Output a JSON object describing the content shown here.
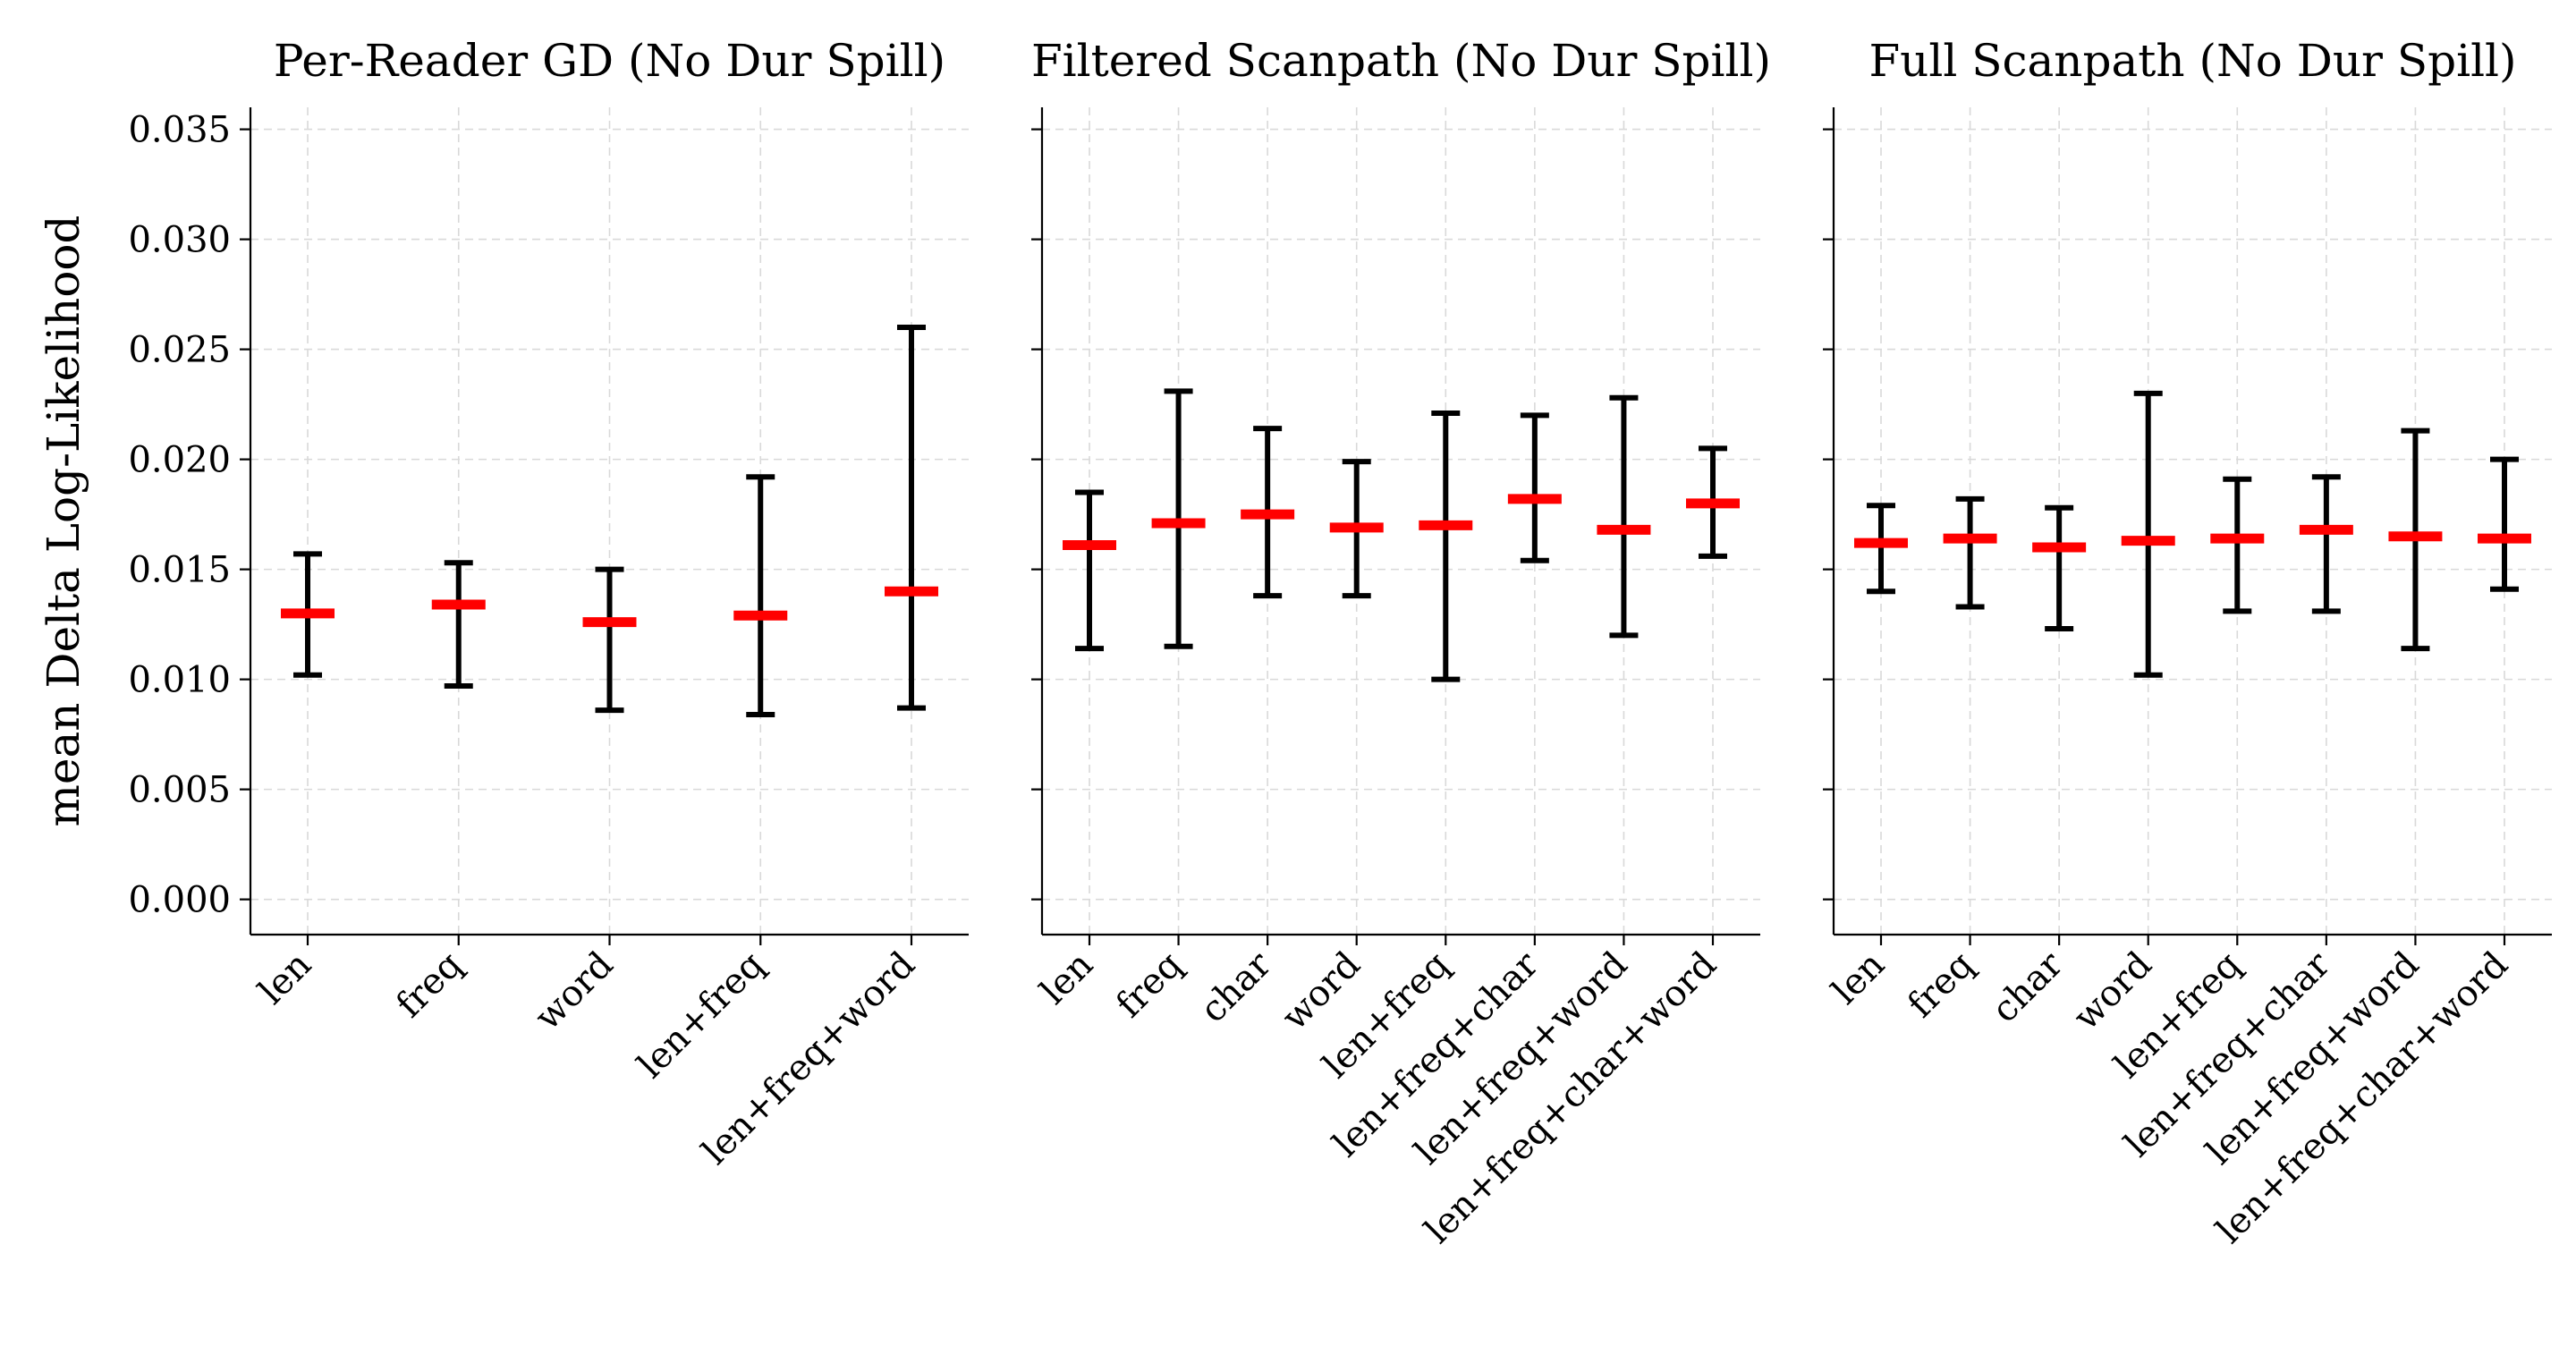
{
  "chart_data": {
    "type": "errorbar",
    "ylabel": "mean Delta Log-Likelihood",
    "ylim": [
      -0.0016,
      0.036
    ],
    "yticks": [
      "0.000",
      "0.005",
      "0.010",
      "0.015",
      "0.020",
      "0.025",
      "0.030",
      "0.035"
    ],
    "sharey": true,
    "grid": true,
    "colors": {
      "mean": "#ff0000",
      "errorbar": "#000000",
      "grid": "#d9d9d9"
    },
    "panels": [
      {
        "title": "Per-Reader GD (No Dur Spill)",
        "categories": [
          "len",
          "freq",
          "word",
          "len+freq",
          "len+freq+word"
        ],
        "mean": [
          0.013,
          0.0134,
          0.0126,
          0.0129,
          0.014
        ],
        "lower": [
          0.0102,
          0.0097,
          0.0086,
          0.0084,
          0.0087
        ],
        "upper": [
          0.0157,
          0.0153,
          0.015,
          0.0192,
          0.026
        ]
      },
      {
        "title": "Filtered Scanpath (No Dur Spill)",
        "categories": [
          "len",
          "freq",
          "char",
          "word",
          "len+freq",
          "len+freq+char",
          "len+freq+word",
          "len+freq+char+word"
        ],
        "mean": [
          0.0161,
          0.0171,
          0.0175,
          0.0169,
          0.017,
          0.0182,
          0.0168,
          0.018
        ],
        "lower": [
          0.0114,
          0.0115,
          0.0138,
          0.0138,
          0.01,
          0.0154,
          0.012,
          0.0156
        ],
        "upper": [
          0.0185,
          0.0231,
          0.0214,
          0.0199,
          0.0221,
          0.022,
          0.0228,
          0.0205
        ]
      },
      {
        "title": "Full Scanpath (No Dur Spill)",
        "categories": [
          "len",
          "freq",
          "char",
          "word",
          "len+freq",
          "len+freq+char",
          "len+freq+word",
          "len+freq+char+word"
        ],
        "mean": [
          0.0162,
          0.0164,
          0.016,
          0.0163,
          0.0164,
          0.0168,
          0.0165,
          0.0164
        ],
        "lower": [
          0.014,
          0.0133,
          0.0123,
          0.0102,
          0.0131,
          0.0131,
          0.0114,
          0.0141
        ],
        "upper": [
          0.0179,
          0.0182,
          0.0178,
          0.023,
          0.0191,
          0.0192,
          0.0213,
          0.02
        ]
      }
    ]
  }
}
